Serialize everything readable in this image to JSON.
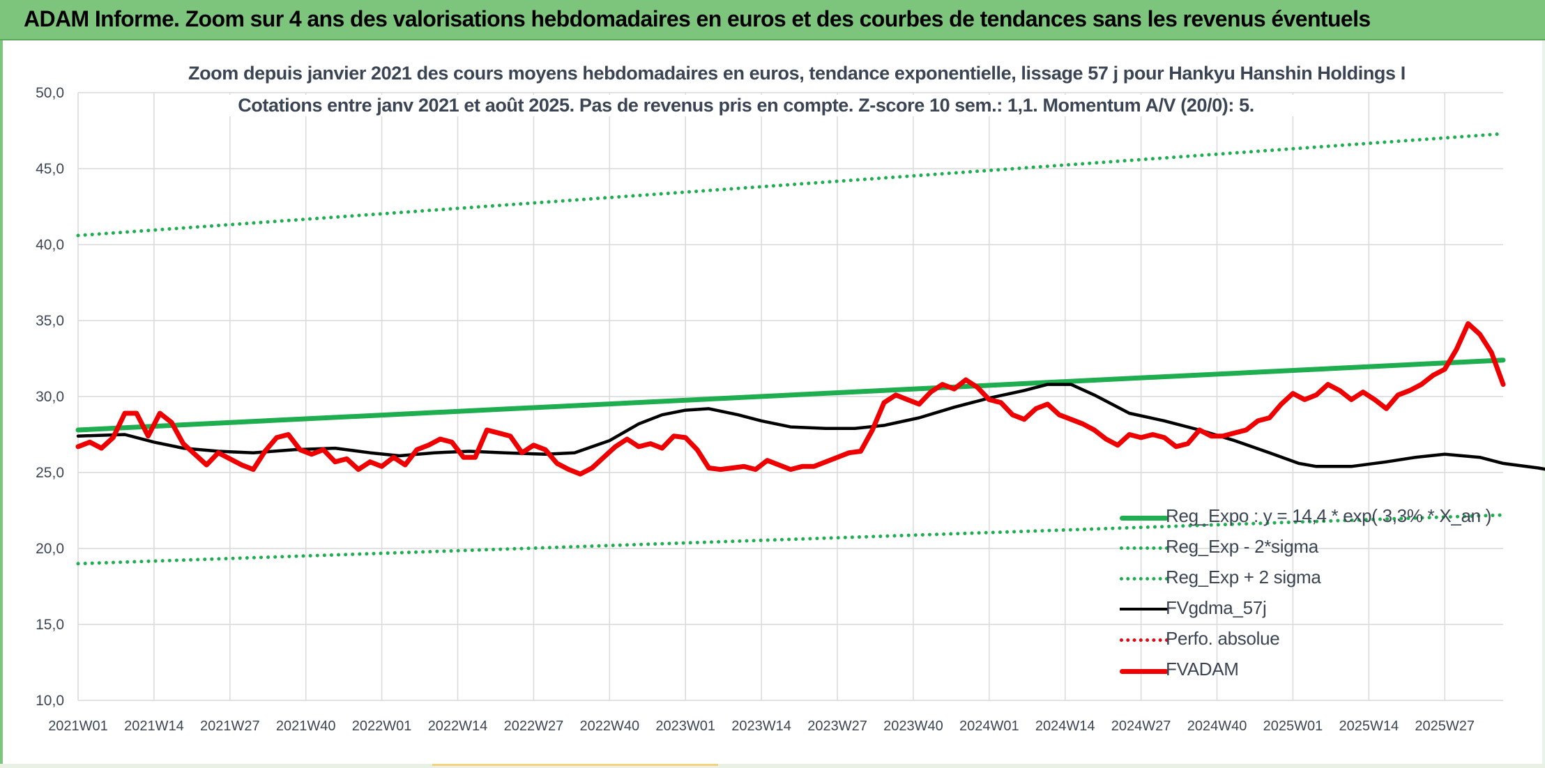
{
  "banner": {
    "title": "ADAM Informe. Zoom sur 4 ans des valorisations hebdomadaires en euros et des courbes de tendances sans les revenus éventuels"
  },
  "colors": {
    "banner_bg": "#7dc57d",
    "reg_expo": "#1fae4f",
    "sigma_bands": "#1fae4f",
    "fvgdma": "#000000",
    "perfo": "#e30613",
    "fvadam": "#ee0000",
    "grid": "#d9d9d9",
    "text": "#3a4452"
  },
  "chart_data": {
    "type": "line",
    "title": "Zoom depuis janvier 2021 des cours moyens hebdomadaires en euros, tendance exponentielle, lissage 57 j pour Hankyu Hanshin Holdings I",
    "subtitle": "Cotations entre janv 2021 et août 2025. Pas de revenus pris en compte. Z-score 10 sem.: 1,1. Momentum A/V (20/0): 5.",
    "xlabel": "",
    "ylabel": "",
    "ylim": [
      10,
      50
    ],
    "yticks": [
      "10,0",
      "15,0",
      "20,0",
      "25,0",
      "30,0",
      "35,0",
      "40,0",
      "45,0",
      "50,0"
    ],
    "xticks": [
      "2021W01",
      "2021W14",
      "2021W27",
      "2021W40",
      "2022W01",
      "2022W14",
      "2022W27",
      "2022W40",
      "2023W01",
      "2023W14",
      "2023W27",
      "2023W40",
      "2024W01",
      "2024W14",
      "2024W27",
      "2024W40",
      "2025W01",
      "2025W14",
      "2025W27"
    ],
    "x_week_start": 0,
    "x_week_end": 244,
    "x_weeks_per_tick": 13,
    "grid": true,
    "legend_position": "bottom-right",
    "series": [
      {
        "name": "Reg_Expo : y = 14,4 * exp( 3,3% * X_an )",
        "style": "solid-thick",
        "color": "#1fae4f",
        "points": [
          [
            0,
            27.8
          ],
          [
            244,
            32.4
          ]
        ]
      },
      {
        "name": "Reg_Exp - 2*sigma",
        "style": "dotted",
        "color": "#1fae4f",
        "points": [
          [
            0,
            19.0
          ],
          [
            244,
            22.2
          ]
        ]
      },
      {
        "name": "Reg_Exp + 2 sigma",
        "style": "dotted",
        "color": "#1fae4f",
        "points": [
          [
            0,
            40.6
          ],
          [
            244,
            47.3
          ]
        ]
      },
      {
        "name": "FVgdma_57j",
        "style": "solid",
        "color": "#000000",
        "points": [
          [
            0,
            27.4
          ],
          [
            8,
            27.5
          ],
          [
            13,
            27.0
          ],
          [
            18,
            26.6
          ],
          [
            24,
            26.4
          ],
          [
            30,
            26.3
          ],
          [
            37,
            26.5
          ],
          [
            44,
            26.6
          ],
          [
            50,
            26.3
          ],
          [
            55,
            26.1
          ],
          [
            61,
            26.3
          ],
          [
            67,
            26.4
          ],
          [
            73,
            26.3
          ],
          [
            80,
            26.2
          ],
          [
            85,
            26.3
          ],
          [
            91,
            27.1
          ],
          [
            96,
            28.2
          ],
          [
            100,
            28.8
          ],
          [
            104,
            29.1
          ],
          [
            108,
            29.2
          ],
          [
            113,
            28.8
          ],
          [
            117,
            28.4
          ],
          [
            122,
            28.0
          ],
          [
            128,
            27.9
          ],
          [
            133,
            27.9
          ],
          [
            138,
            28.1
          ],
          [
            144,
            28.6
          ],
          [
            150,
            29.3
          ],
          [
            156,
            29.9
          ],
          [
            162,
            30.4
          ],
          [
            166,
            30.8
          ],
          [
            170,
            30.8
          ],
          [
            174,
            30.1
          ],
          [
            180,
            28.9
          ],
          [
            186,
            28.4
          ],
          [
            192,
            27.8
          ],
          [
            198,
            27.1
          ],
          [
            204,
            26.3
          ],
          [
            209,
            25.6
          ],
          [
            212,
            25.4
          ],
          [
            218,
            25.4
          ],
          [
            224,
            25.7
          ],
          [
            229,
            26.0
          ],
          [
            234,
            26.2
          ],
          [
            240,
            26.0
          ],
          [
            244,
            25.6
          ],
          [
            250,
            25.3
          ],
          [
            256,
            24.9
          ],
          [
            262,
            24.6
          ],
          [
            268,
            24.4
          ],
          [
            273,
            24.2
          ],
          [
            277,
            24.1
          ],
          [
            281,
            24.1
          ],
          [
            284,
            24.4
          ],
          [
            287,
            24.8
          ]
        ]
      },
      {
        "name": "Perfo. absolue",
        "style": "dotted",
        "color": "#e30613",
        "points": []
      },
      {
        "name": "FVADAM",
        "style": "solid-thick",
        "color": "#ee0000",
        "points": [
          [
            0,
            26.7
          ],
          [
            2,
            27.0
          ],
          [
            4,
            26.6
          ],
          [
            6,
            27.3
          ],
          [
            8,
            28.9
          ],
          [
            10,
            28.9
          ],
          [
            12,
            27.4
          ],
          [
            14,
            28.9
          ],
          [
            16,
            28.3
          ],
          [
            18,
            26.9
          ],
          [
            20,
            26.2
          ],
          [
            22,
            25.5
          ],
          [
            24,
            26.3
          ],
          [
            26,
            25.9
          ],
          [
            28,
            25.5
          ],
          [
            30,
            25.2
          ],
          [
            32,
            26.4
          ],
          [
            34,
            27.3
          ],
          [
            36,
            27.5
          ],
          [
            38,
            26.5
          ],
          [
            40,
            26.2
          ],
          [
            42,
            26.5
          ],
          [
            44,
            25.7
          ],
          [
            46,
            25.9
          ],
          [
            48,
            25.2
          ],
          [
            50,
            25.7
          ],
          [
            52,
            25.4
          ],
          [
            54,
            26.0
          ],
          [
            56,
            25.5
          ],
          [
            58,
            26.5
          ],
          [
            60,
            26.8
          ],
          [
            62,
            27.2
          ],
          [
            64,
            27.0
          ],
          [
            66,
            26.0
          ],
          [
            68,
            26.0
          ],
          [
            70,
            27.8
          ],
          [
            72,
            27.6
          ],
          [
            74,
            27.4
          ],
          [
            76,
            26.3
          ],
          [
            78,
            26.8
          ],
          [
            80,
            26.5
          ],
          [
            82,
            25.6
          ],
          [
            84,
            25.2
          ],
          [
            86,
            24.9
          ],
          [
            88,
            25.3
          ],
          [
            90,
            26.0
          ],
          [
            92,
            26.7
          ],
          [
            94,
            27.2
          ],
          [
            96,
            26.7
          ],
          [
            98,
            26.9
          ],
          [
            100,
            26.6
          ],
          [
            102,
            27.4
          ],
          [
            104,
            27.3
          ],
          [
            106,
            26.5
          ],
          [
            108,
            25.3
          ],
          [
            110,
            25.2
          ],
          [
            112,
            25.3
          ],
          [
            114,
            25.4
          ],
          [
            116,
            25.2
          ],
          [
            118,
            25.8
          ],
          [
            120,
            25.5
          ],
          [
            122,
            25.2
          ],
          [
            124,
            25.4
          ],
          [
            126,
            25.4
          ],
          [
            128,
            25.7
          ],
          [
            130,
            26.0
          ],
          [
            132,
            26.3
          ],
          [
            134,
            26.4
          ],
          [
            136,
            27.8
          ],
          [
            138,
            29.6
          ],
          [
            140,
            30.1
          ],
          [
            142,
            29.8
          ],
          [
            144,
            29.5
          ],
          [
            146,
            30.3
          ],
          [
            148,
            30.8
          ],
          [
            150,
            30.5
          ],
          [
            152,
            31.1
          ],
          [
            154,
            30.6
          ],
          [
            156,
            29.8
          ],
          [
            158,
            29.6
          ],
          [
            160,
            28.8
          ],
          [
            162,
            28.5
          ],
          [
            164,
            29.2
          ],
          [
            166,
            29.5
          ],
          [
            168,
            28.8
          ],
          [
            170,
            28.5
          ],
          [
            172,
            28.2
          ],
          [
            174,
            27.8
          ],
          [
            176,
            27.2
          ],
          [
            178,
            26.8
          ],
          [
            180,
            27.5
          ],
          [
            182,
            27.3
          ],
          [
            184,
            27.5
          ],
          [
            186,
            27.3
          ],
          [
            188,
            26.7
          ],
          [
            190,
            26.9
          ],
          [
            192,
            27.8
          ],
          [
            194,
            27.4
          ],
          [
            196,
            27.4
          ],
          [
            198,
            27.6
          ],
          [
            200,
            27.8
          ],
          [
            202,
            28.4
          ],
          [
            204,
            28.6
          ],
          [
            206,
            29.5
          ],
          [
            208,
            30.2
          ],
          [
            210,
            29.8
          ],
          [
            212,
            30.1
          ],
          [
            214,
            30.8
          ],
          [
            216,
            30.4
          ],
          [
            218,
            29.8
          ],
          [
            220,
            30.3
          ],
          [
            222,
            29.8
          ],
          [
            224,
            29.2
          ],
          [
            226,
            30.1
          ],
          [
            228,
            30.4
          ],
          [
            230,
            30.8
          ],
          [
            232,
            31.4
          ],
          [
            234,
            31.8
          ],
          [
            236,
            33.1
          ],
          [
            238,
            34.8
          ],
          [
            240,
            34.1
          ],
          [
            242,
            32.9
          ],
          [
            244,
            30.8
          ]
        ]
      }
    ]
  },
  "legend": {
    "items": [
      {
        "label": "Reg_Expo : y = 14,4 * exp( 3,3% * X_an )",
        "color": "#1fae4f",
        "style": "solid-thick"
      },
      {
        "label": "Reg_Exp - 2*sigma",
        "color": "#1fae4f",
        "style": "dotted"
      },
      {
        "label": "Reg_Exp + 2 sigma",
        "color": "#1fae4f",
        "style": "dotted"
      },
      {
        "label": "FVgdma_57j",
        "color": "#000000",
        "style": "solid"
      },
      {
        "label": "Perfo. absolue",
        "color": "#e30613",
        "style": "dotted"
      },
      {
        "label": "FVADAM",
        "color": "#ee0000",
        "style": "solid-thick"
      }
    ]
  }
}
